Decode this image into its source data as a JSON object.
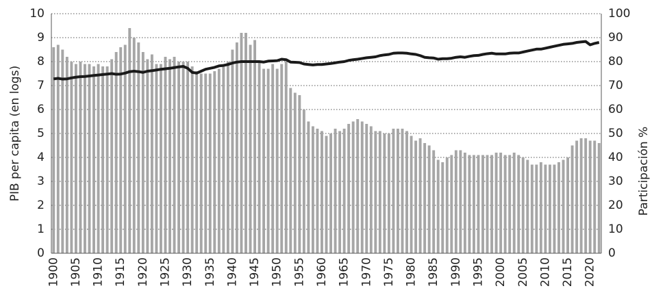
{
  "chart_data": {
    "type": "bar",
    "ylabel": "PIB per capita (en logs)",
    "y2label": "Participación %",
    "categories": [
      "1900",
      null,
      null,
      null,
      null,
      "1905",
      null,
      null,
      null,
      null,
      "1910",
      null,
      null,
      null,
      null,
      "1915",
      null,
      null,
      null,
      null,
      "1920",
      null,
      null,
      null,
      null,
      "1925",
      null,
      null,
      null,
      null,
      "1930",
      null,
      null,
      null,
      null,
      "1935",
      null,
      null,
      null,
      null,
      "1940",
      null,
      null,
      null,
      null,
      "1945",
      null,
      null,
      null,
      null,
      "1950",
      null,
      null,
      null,
      null,
      "1955",
      null,
      null,
      null,
      null,
      "1960",
      null,
      null,
      null,
      null,
      "1965",
      null,
      null,
      null,
      null,
      "1970",
      null,
      null,
      null,
      null,
      "1975",
      null,
      null,
      null,
      null,
      "1980",
      null,
      null,
      null,
      null,
      "1985",
      null,
      null,
      null,
      null,
      "1990",
      null,
      null,
      null,
      null,
      "1995",
      null,
      null,
      null,
      null,
      "2000",
      null,
      null,
      null,
      null,
      "2005",
      null,
      null,
      null,
      null,
      "2010",
      null,
      null,
      null,
      null,
      "2015",
      null,
      null,
      null,
      null,
      "2020",
      null,
      null
    ],
    "series": [
      {
        "type": "bar",
        "axis": "y2",
        "color": "#a6a6a6",
        "values": [
          86,
          87,
          85,
          82,
          80,
          79,
          80,
          79,
          79,
          78,
          79,
          78,
          78,
          81,
          84,
          86,
          87,
          94,
          90,
          88,
          84,
          81,
          83,
          79,
          79,
          82,
          81,
          82,
          80,
          80,
          80,
          78,
          76,
          75,
          75,
          75,
          76,
          77,
          78,
          80,
          85,
          88,
          92,
          92,
          87,
          89,
          80,
          77,
          77,
          79,
          77,
          79,
          80,
          69,
          67,
          66,
          60,
          55,
          53,
          52,
          51,
          49,
          50,
          52,
          51,
          52,
          54,
          55,
          56,
          55,
          54,
          53,
          51,
          51,
          50,
          50,
          52,
          52,
          52,
          51,
          49,
          47,
          48,
          46,
          45,
          43,
          39,
          38,
          40,
          41,
          43,
          43,
          42,
          41,
          41,
          41,
          41,
          41,
          41,
          42,
          42,
          41,
          41,
          42,
          41,
          40,
          39,
          37,
          37,
          38,
          37,
          37,
          37,
          38,
          39,
          40,
          45,
          47,
          48,
          48,
          47,
          47,
          46
        ]
      },
      {
        "type": "line",
        "axis": "y",
        "color": "#1a1a1a",
        "values": [
          7.28,
          7.3,
          7.27,
          7.28,
          7.32,
          7.35,
          7.37,
          7.38,
          7.4,
          7.42,
          7.44,
          7.46,
          7.48,
          7.5,
          7.47,
          7.48,
          7.52,
          7.58,
          7.6,
          7.58,
          7.55,
          7.6,
          7.62,
          7.65,
          7.68,
          7.7,
          7.72,
          7.75,
          7.78,
          7.8,
          7.72,
          7.55,
          7.52,
          7.6,
          7.68,
          7.72,
          7.76,
          7.82,
          7.84,
          7.88,
          7.94,
          7.98,
          8.0,
          8.0,
          8.0,
          8.0,
          8.0,
          7.98,
          8.02,
          8.03,
          8.04,
          8.1,
          8.08,
          7.98,
          7.97,
          7.96,
          7.9,
          7.88,
          7.86,
          7.88,
          7.88,
          7.9,
          7.92,
          7.95,
          7.98,
          8.0,
          8.05,
          8.08,
          8.1,
          8.13,
          8.16,
          8.18,
          8.2,
          8.25,
          8.28,
          8.3,
          8.35,
          8.36,
          8.36,
          8.35,
          8.32,
          8.3,
          8.25,
          8.18,
          8.16,
          8.15,
          8.1,
          8.12,
          8.12,
          8.14,
          8.18,
          8.2,
          8.18,
          8.22,
          8.25,
          8.26,
          8.3,
          8.33,
          8.35,
          8.32,
          8.32,
          8.32,
          8.35,
          8.36,
          8.36,
          8.4,
          8.44,
          8.48,
          8.52,
          8.52,
          8.56,
          8.6,
          8.64,
          8.68,
          8.72,
          8.74,
          8.76,
          8.8,
          8.82,
          8.84,
          8.7,
          8.76,
          8.8
        ]
      }
    ],
    "ylim": [
      0,
      10
    ],
    "yticks": [
      0,
      1,
      2,
      3,
      4,
      5,
      6,
      7,
      8,
      9,
      10
    ],
    "y2lim": [
      0,
      100
    ],
    "y2ticks": [
      0,
      10,
      20,
      30,
      40,
      50,
      60,
      70,
      80,
      90,
      100
    ],
    "grid": true
  }
}
